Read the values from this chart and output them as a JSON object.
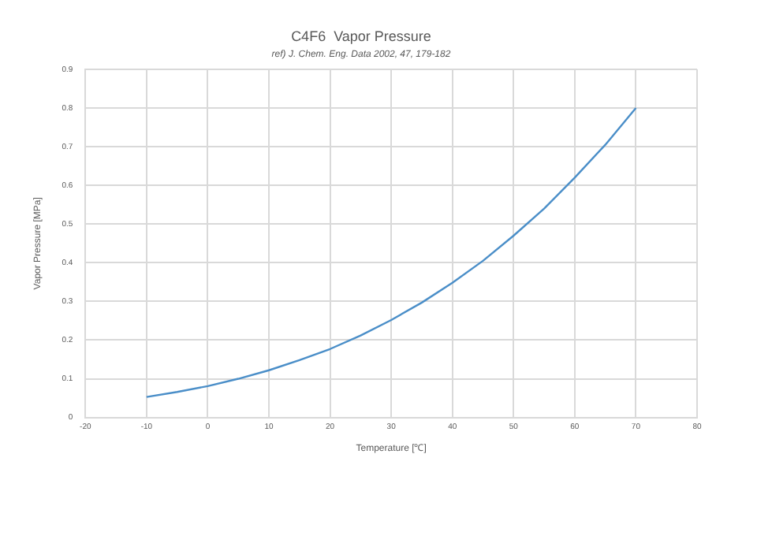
{
  "chart_data": {
    "type": "line",
    "title": "C4F6  Vapor Pressure",
    "subtitle": "ref) J. Chem. Eng. Data 2002, 47, 179-182",
    "xlabel": "Temperature [℃]",
    "ylabel": "Vapor Pressure [MPa]",
    "x": [
      -10,
      -5,
      0,
      5,
      10,
      15,
      20,
      25,
      30,
      35,
      40,
      45,
      50,
      55,
      60,
      65,
      70
    ],
    "series": [
      {
        "color": "#4a8ec8",
        "values": [
          0.053,
          0.066,
          0.081,
          0.1,
          0.122,
          0.148,
          0.177,
          0.212,
          0.252,
          0.297,
          0.348,
          0.405,
          0.47,
          0.54,
          0.62,
          0.705,
          0.8
        ]
      }
    ],
    "xlim": [
      -20,
      80
    ],
    "xticks": [
      -20,
      -10,
      0,
      10,
      20,
      30,
      40,
      50,
      60,
      70,
      80
    ],
    "ylim": [
      0,
      0.9
    ],
    "yticks": [
      0,
      0.1,
      0.2,
      0.3,
      0.4,
      0.5,
      0.6,
      0.7,
      0.8,
      0.9
    ],
    "grid": true,
    "legend": false,
    "marker": "none",
    "line_style": "solid"
  }
}
